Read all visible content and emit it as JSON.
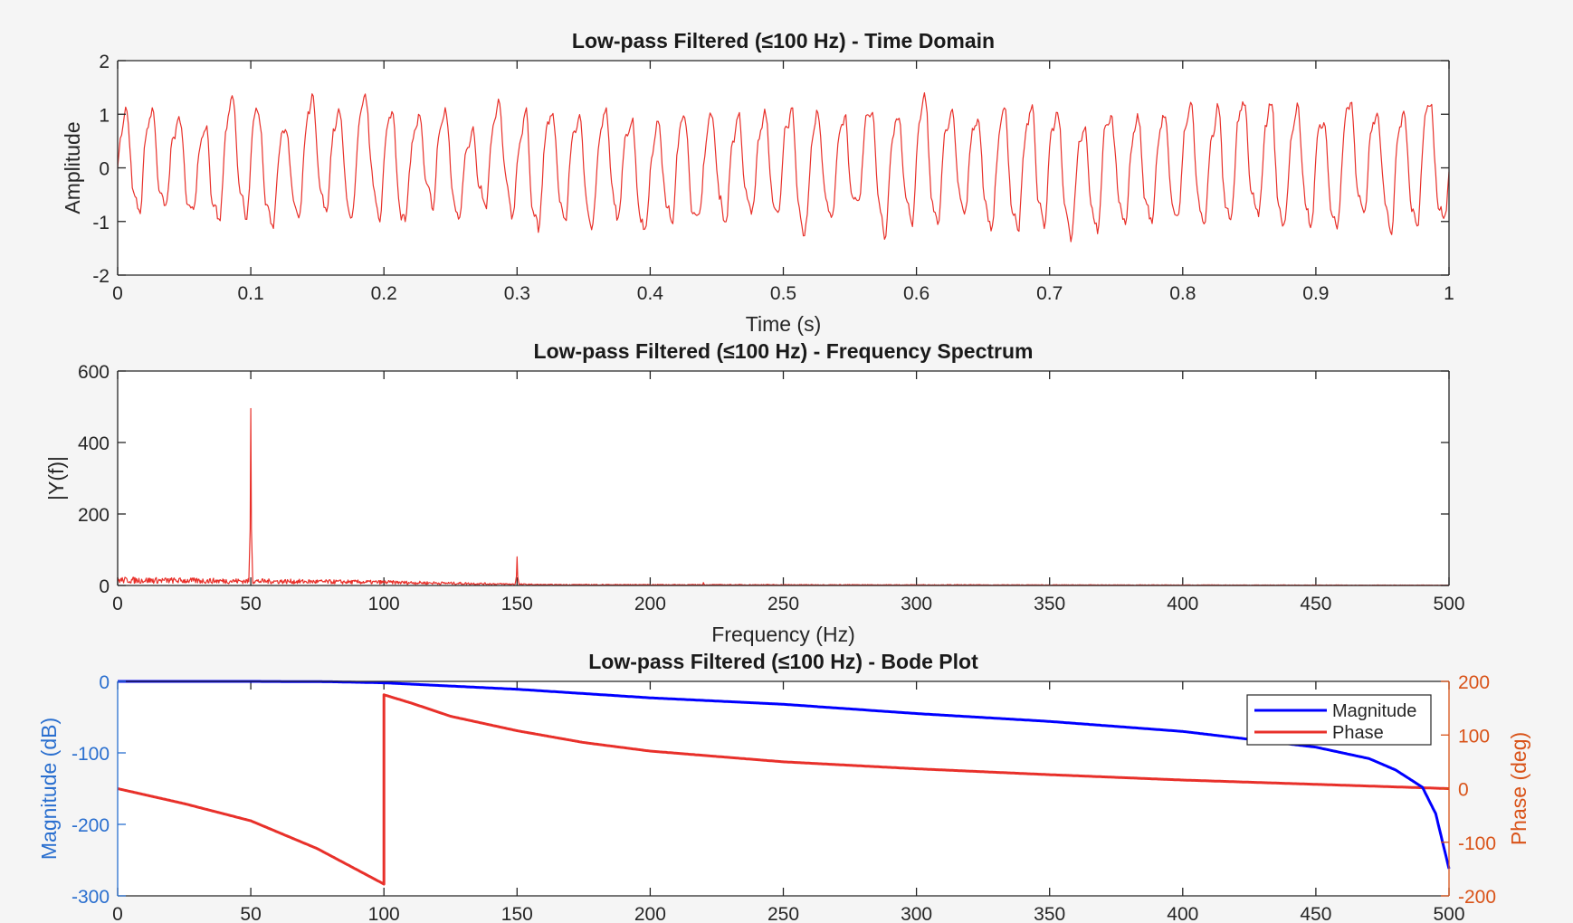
{
  "colors": {
    "signal": "#e8302a",
    "magnitude": "#0000ff",
    "phase": "#e8302a",
    "left_axis": "#2a6fcf",
    "right_axis": "#d95319",
    "background": "#f5f5f5"
  },
  "chart_data": [
    {
      "type": "line",
      "title": "Low-pass Filtered (≤100 Hz) - Time Domain",
      "xlabel": "Time (s)",
      "ylabel": "Amplitude",
      "xlim": [
        0,
        1
      ],
      "ylim": [
        -2,
        2
      ],
      "xticks": [
        "0",
        "0.1",
        "0.2",
        "0.3",
        "0.4",
        "0.5",
        "0.6",
        "0.7",
        "0.8",
        "0.9",
        "1"
      ],
      "yticks": [
        "-2",
        "-1",
        "0",
        "1",
        "2"
      ],
      "signal_components": [
        {
          "freq_hz": 50,
          "amplitude": 1.0
        },
        {
          "freq_hz": 150,
          "amplitude": 0.16
        }
      ],
      "noise_amplitude": 0.18,
      "peak_range": [
        -1.6,
        1.4
      ]
    },
    {
      "type": "line",
      "title": "Low-pass Filtered (≤100 Hz) - Frequency Spectrum",
      "xlabel": "Frequency (Hz)",
      "ylabel": "|Y(f)|",
      "xlim": [
        0,
        500
      ],
      "ylim": [
        0,
        600
      ],
      "xticks": [
        "0",
        "50",
        "100",
        "150",
        "200",
        "250",
        "300",
        "350",
        "400",
        "450",
        "500"
      ],
      "yticks": [
        "0",
        "200",
        "400",
        "600"
      ],
      "peaks": [
        {
          "f": 50,
          "value": 495
        },
        {
          "f": 150,
          "value": 80
        },
        {
          "f": 220,
          "value": 8
        }
      ],
      "noise_floor": [
        {
          "f": 0,
          "value": 20
        },
        {
          "f": 100,
          "value": 12
        },
        {
          "f": 160,
          "value": 3
        },
        {
          "f": 500,
          "value": 1
        }
      ]
    },
    {
      "type": "line",
      "title": "Low-pass Filtered (≤100 Hz) - Bode Plot",
      "xlim": [
        0,
        500
      ],
      "xticks": [
        "0",
        "50",
        "100",
        "150",
        "200",
        "250",
        "300",
        "350",
        "400",
        "450",
        "500"
      ],
      "left_axis": {
        "label": "Magnitude (dB)",
        "ylim": [
          -300,
          0
        ],
        "yticks": [
          "-300",
          "-200",
          "-100",
          "0"
        ]
      },
      "right_axis": {
        "label": "Phase (deg)",
        "ylim": [
          -200,
          200
        ],
        "yticks": [
          "-200",
          "-100",
          "0",
          "100",
          "200"
        ]
      },
      "legend": {
        "placement": "top-right",
        "entries": [
          "Magnitude",
          "Phase"
        ]
      },
      "series": [
        {
          "name": "Magnitude",
          "axis": "left",
          "x": [
            0,
            50,
            80,
            100,
            150,
            200,
            250,
            300,
            350,
            400,
            450,
            470,
            480,
            490,
            495,
            500
          ],
          "y": [
            0,
            0,
            -0.5,
            -2,
            -11,
            -23,
            -32,
            -45,
            -56,
            -70,
            -92,
            -108,
            -124,
            -148,
            -185,
            -262
          ]
        },
        {
          "name": "Phase",
          "axis": "right",
          "x": [
            0,
            25,
            50,
            75,
            100,
            100.01,
            110,
            125,
            150,
            175,
            200,
            250,
            300,
            350,
            400,
            450,
            500
          ],
          "y": [
            0,
            -28,
            -60,
            -112,
            -178,
            175,
            160,
            135,
            108,
            86,
            70,
            50,
            37,
            26,
            16,
            8,
            0
          ]
        }
      ]
    }
  ]
}
